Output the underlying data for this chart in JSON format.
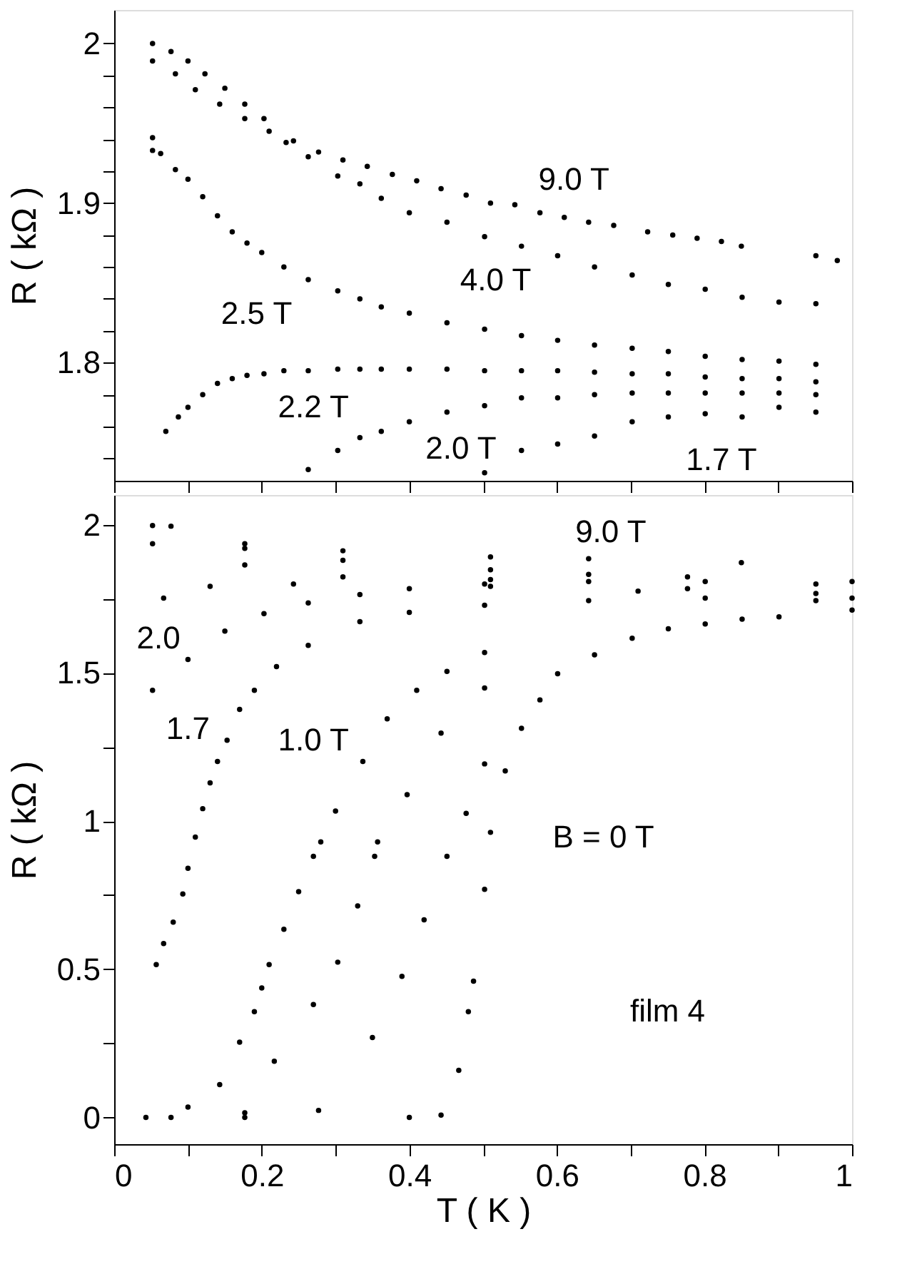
{
  "chart_data": [
    {
      "type": "scatter",
      "ylabel": "R ( kΩ )",
      "xlim": [
        0,
        1
      ],
      "ylim": [
        1.726,
        2.021
      ],
      "tick_labels": "y",
      "marker": "circle",
      "grid": false,
      "legend": false,
      "xticks": [
        {
          "value": 0,
          "label": null
        },
        {
          "value": 0.1,
          "label": null
        },
        {
          "value": 0.2,
          "label": null
        },
        {
          "value": 0.3,
          "label": null
        },
        {
          "value": 0.4,
          "label": null
        },
        {
          "value": 0.5,
          "label": null
        },
        {
          "value": 0.6,
          "label": null
        },
        {
          "value": 0.7,
          "label": null
        },
        {
          "value": 0.8,
          "label": null
        },
        {
          "value": 0.9,
          "label": null
        },
        {
          "value": 1,
          "label": null
        }
      ],
      "yticks": [
        {
          "value": 1.74,
          "label": null
        },
        {
          "value": 1.76,
          "label": null
        },
        {
          "value": 1.78,
          "label": null
        },
        1.8,
        {
          "value": 1.82,
          "label": null
        },
        {
          "value": 1.84,
          "label": null
        },
        {
          "value": 1.86,
          "label": null
        },
        {
          "value": 1.88,
          "label": null
        },
        1.9,
        {
          "value": 1.92,
          "label": null
        },
        {
          "value": 1.94,
          "label": null
        },
        {
          "value": 1.96,
          "label": null
        },
        {
          "value": 1.98,
          "label": null
        },
        2
      ],
      "annotations": [
        "9.0 T",
        "4.0 T",
        "2.5 T",
        "2.2 T",
        "2.0 T",
        "1.7 T"
      ],
      "series": [
        {
          "color": "#000000",
          "x": [
            0.052,
            0.083,
            0.11,
            0.143,
            0.177,
            0.21,
            0.243,
            0.277,
            0.31,
            0.343,
            0.377,
            0.41,
            0.443,
            0.477,
            0.51,
            0.543,
            0.577,
            0.61,
            0.643,
            0.677,
            0.723,
            0.757,
            0.79,
            0.823,
            0.85
          ],
          "values": [
            1.989,
            1.981,
            1.971,
            1.962,
            1.953,
            1.945,
            1.939,
            1.932,
            1.927,
            1.923,
            1.918,
            1.914,
            1.909,
            1.905,
            1.9,
            1.899,
            1.894,
            1.891,
            1.888,
            1.886,
            1.882,
            1.88,
            1.878,
            1.876,
            1.873
          ]
        },
        {
          "color": "#000000",
          "x": [
            0.052,
            0.077,
            0.1,
            0.123,
            0.15,
            0.177,
            0.203,
            0.233,
            0.263,
            0.303,
            0.333,
            0.362,
            0.4,
            0.451,
            0.502,
            0.552,
            0.601,
            0.651,
            0.702,
            0.751,
            0.801,
            0.851,
            0.901,
            0.951
          ],
          "values": [
            2.0,
            1.995,
            1.989,
            1.981,
            1.972,
            1.962,
            1.953,
            1.938,
            1.929,
            1.917,
            1.912,
            1.903,
            1.894,
            1.888,
            1.879,
            1.873,
            1.867,
            1.86,
            1.855,
            1.849,
            1.846,
            1.841,
            1.838,
            1.837
          ]
        },
        {
          "color": "#000000",
          "x": [
            0.951,
            0.98
          ],
          "values": [
            1.867,
            1.864
          ]
        },
        {
          "color": "#000000",
          "x": [
            0.052,
            0.052,
            0.063,
            0.083,
            0.1,
            0.12,
            0.14,
            0.16,
            0.18,
            0.2,
            0.23,
            0.263,
            0.303,
            0.333,
            0.362,
            0.4,
            0.451,
            0.502,
            0.552,
            0.601,
            0.651,
            0.702,
            0.751,
            0.801,
            0.851,
            0.901,
            0.951
          ],
          "values": [
            1.941,
            1.933,
            1.931,
            1.921,
            1.915,
            1.904,
            1.892,
            1.882,
            1.875,
            1.869,
            1.86,
            1.852,
            1.845,
            1.84,
            1.835,
            1.831,
            1.825,
            1.821,
            1.817,
            1.814,
            1.811,
            1.809,
            1.807,
            1.804,
            1.802,
            1.801,
            1.799
          ]
        },
        {
          "color": "#000000",
          "x": [
            0.07,
            0.087,
            0.1,
            0.12,
            0.14,
            0.16,
            0.18,
            0.203,
            0.23,
            0.263,
            0.303,
            0.333,
            0.362,
            0.4,
            0.451,
            0.502,
            0.552,
            0.601,
            0.651,
            0.702,
            0.751,
            0.801,
            0.851,
            0.901,
            0.951
          ],
          "values": [
            1.757,
            1.766,
            1.772,
            1.78,
            1.787,
            1.79,
            1.792,
            1.793,
            1.795,
            1.795,
            1.796,
            1.796,
            1.796,
            1.796,
            1.796,
            1.795,
            1.795,
            1.795,
            1.794,
            1.793,
            1.793,
            1.791,
            1.79,
            1.79,
            1.788
          ]
        },
        {
          "color": "#000000",
          "x": [
            0.263,
            0.303,
            0.333,
            0.362,
            0.4,
            0.451,
            0.502,
            0.552,
            0.601,
            0.651,
            0.702,
            0.751,
            0.801,
            0.851,
            0.901,
            0.951
          ],
          "values": [
            1.733,
            1.745,
            1.753,
            1.757,
            1.763,
            1.769,
            1.773,
            1.778,
            1.778,
            1.78,
            1.781,
            1.781,
            1.781,
            1.781,
            1.781,
            1.78
          ]
        },
        {
          "color": "#000000",
          "x": [
            0.502,
            0.552,
            0.601,
            0.651,
            0.702,
            0.751,
            0.801,
            0.851,
            0.901,
            0.951
          ],
          "values": [
            1.731,
            1.745,
            1.749,
            1.754,
            1.763,
            1.766,
            1.768,
            1.766,
            1.772,
            1.769
          ]
        }
      ]
    },
    {
      "type": "scatter",
      "xlabel": "T ( K )",
      "ylabel": "R ( kΩ )",
      "xlim": [
        0,
        1
      ],
      "ylim": [
        -0.09,
        2.1
      ],
      "marker": "circle",
      "grid": false,
      "legend": false,
      "xticks": [
        0,
        {
          "value": 0.1,
          "label": null
        },
        0.2,
        {
          "value": 0.3,
          "label": null
        },
        0.4,
        {
          "value": 0.5,
          "label": null
        },
        0.6,
        {
          "value": 0.7,
          "label": null
        },
        0.8,
        {
          "value": 0.9,
          "label": null
        },
        1
      ],
      "yticks": [
        0,
        {
          "value": 0.25,
          "label": null
        },
        0.5,
        {
          "value": 0.75,
          "label": null
        },
        1,
        {
          "value": 1.25,
          "label": null
        },
        1.5,
        {
          "value": 1.75,
          "label": null
        },
        2
      ],
      "annotations": [
        "9.0 T",
        "2.0",
        "1.7",
        "1.0 T",
        "B = 0 T",
        "film 4"
      ],
      "series": [
        {
          "color": "#000000",
          "x": [
            0.052,
            0.177,
            0.31,
            0.51,
            0.643,
            0.85
          ],
          "values": [
            1.997,
            1.936,
            1.912,
            1.891,
            1.885,
            1.872
          ]
        },
        {
          "color": "#000000",
          "x": [
            0.077,
            0.177,
            0.31,
            0.51,
            0.643,
            0.777,
            1.0
          ],
          "values": [
            1.995,
            1.92,
            1.88,
            1.848,
            1.832,
            1.824,
            1.808
          ]
        },
        {
          "color": "#000000",
          "x": [
            0.052,
            0.177,
            0.31,
            0.51,
            0.71,
            1.0
          ],
          "values": [
            1.936,
            1.864,
            1.824,
            1.815,
            1.776,
            1.752
          ]
        },
        {
          "color": "#000000",
          "x": [
            0.067,
            0.13,
            0.243,
            0.51,
            0.777,
            0.951
          ],
          "values": [
            1.752,
            1.792,
            1.8,
            1.792,
            1.784,
            1.768
          ]
        },
        {
          "color": "#000000",
          "x": [
            0.052,
            0.1,
            0.15,
            0.203,
            0.263,
            0.333,
            0.4,
            0.502,
            0.643,
            0.801,
            0.951
          ],
          "values": [
            1.441,
            1.545,
            1.641,
            1.7,
            1.736,
            1.764,
            1.784,
            1.8,
            1.808,
            1.808,
            1.8
          ]
        },
        {
          "color": "#000000",
          "x": [
            0.057,
            0.067,
            0.08,
            0.093,
            0.1,
            0.11,
            0.12,
            0.13,
            0.14,
            0.153,
            0.17,
            0.19,
            0.22,
            0.263,
            0.333,
            0.4,
            0.502,
            0.643,
            0.801,
            0.951
          ],
          "values": [
            0.516,
            0.587,
            0.659,
            0.754,
            0.841,
            0.946,
            1.042,
            1.129,
            1.201,
            1.273,
            1.377,
            1.441,
            1.521,
            1.593,
            1.673,
            1.704,
            1.728,
            1.744,
            1.752,
            1.744
          ]
        },
        {
          "color": "#000000",
          "x": [
            0.043,
            0.1,
            0.143,
            0.17,
            0.19,
            0.2,
            0.21,
            0.23,
            0.25,
            0.27,
            0.28,
            0.3,
            0.337,
            0.37,
            0.41,
            0.451,
            0.502
          ],
          "values": [
            0,
            0.035,
            0.111,
            0.254,
            0.357,
            0.437,
            0.516,
            0.635,
            0.762,
            0.881,
            0.93,
            1.034,
            1.201,
            1.345,
            1.441,
            1.505,
            1.569
          ]
        },
        {
          "color": "#000000",
          "x": [
            0.077,
            0.177,
            0.217,
            0.27,
            0.303,
            0.33,
            0.353,
            0.357,
            0.397,
            0.443,
            0.502
          ],
          "values": [
            0,
            0.016,
            0.19,
            0.381,
            0.524,
            0.714,
            0.881,
            0.93,
            1.089,
            1.297,
            1.449
          ]
        },
        {
          "color": "#000000",
          "x": [
            0.177,
            0.277,
            0.35,
            0.39,
            0.42,
            0.451,
            0.477,
            0.502
          ],
          "values": [
            0,
            0.024,
            0.27,
            0.476,
            0.667,
            0.881,
            1.026,
            1.193
          ]
        },
        {
          "color": "#000000",
          "x": [
            0.4,
            0.443,
            0.467,
            0.48,
            0.487,
            0.502,
            0.51,
            0.53,
            0.552,
            0.577,
            0.601,
            0.651,
            0.702,
            0.751,
            0.801,
            0.851,
            0.901,
            1.0
          ],
          "values": [
            0,
            0.008,
            0.159,
            0.357,
            0.46,
            0.77,
            0.962,
            1.169,
            1.313,
            1.409,
            1.497,
            1.561,
            1.617,
            1.649,
            1.665,
            1.681,
            1.689,
            1.712
          ]
        }
      ]
    }
  ]
}
